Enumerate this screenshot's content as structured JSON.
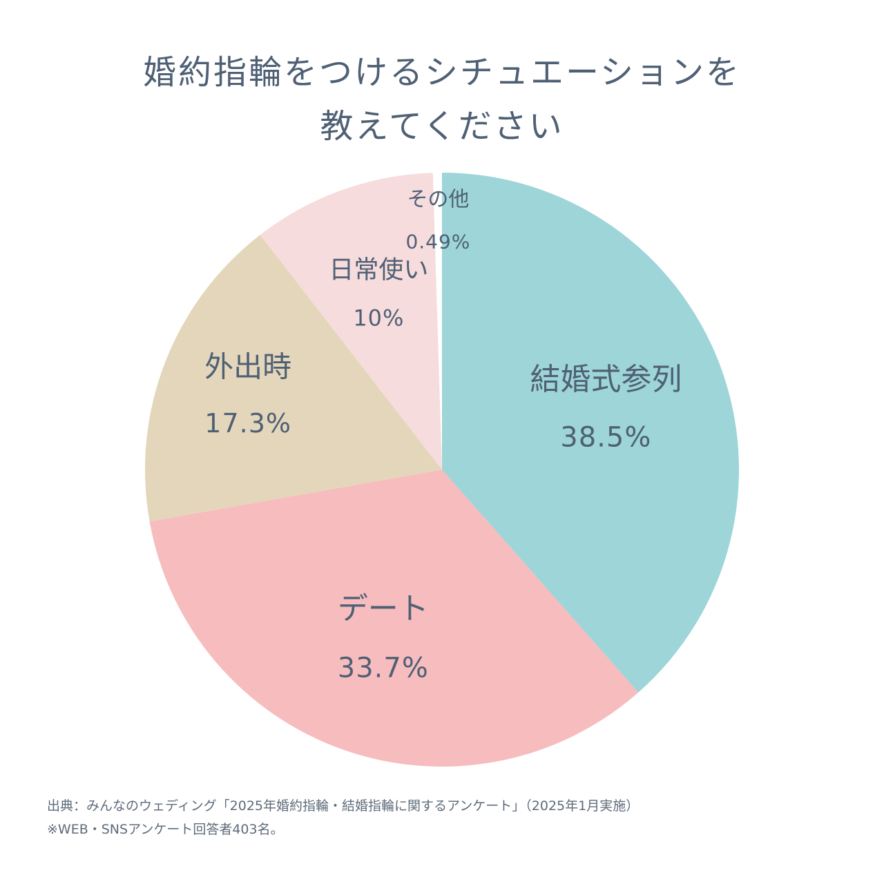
{
  "title": {
    "line1": "婚約指輪をつけるシチュエーションを",
    "line2": "教えてください"
  },
  "source": {
    "line1": "出典：みんなのウェディング「2025年婚約指輪・結婚指輪に関するアンケート」（2025年1月実施）",
    "line2": "※WEB・SNSアンケート回答者403名。"
  },
  "chart_data": {
    "type": "pie",
    "start": "12 o'clock",
    "direction": "clockwise",
    "slices": [
      {
        "label": "結婚式参列",
        "value": 38.5,
        "value_label": "38.5%",
        "color": "#9dd5d8"
      },
      {
        "label": "デート",
        "value": 33.7,
        "value_label": "33.7%",
        "color": "#f7bcbe"
      },
      {
        "label": "外出時",
        "value": 17.3,
        "value_label": "17.3%",
        "color": "#e4d6bb"
      },
      {
        "label": "日常使い",
        "value": 10,
        "value_label": "10%",
        "color": "#f6dcdc"
      },
      {
        "label": "その他",
        "value": 0.49,
        "value_label": "0.49%",
        "color": "#ffffff"
      }
    ]
  }
}
